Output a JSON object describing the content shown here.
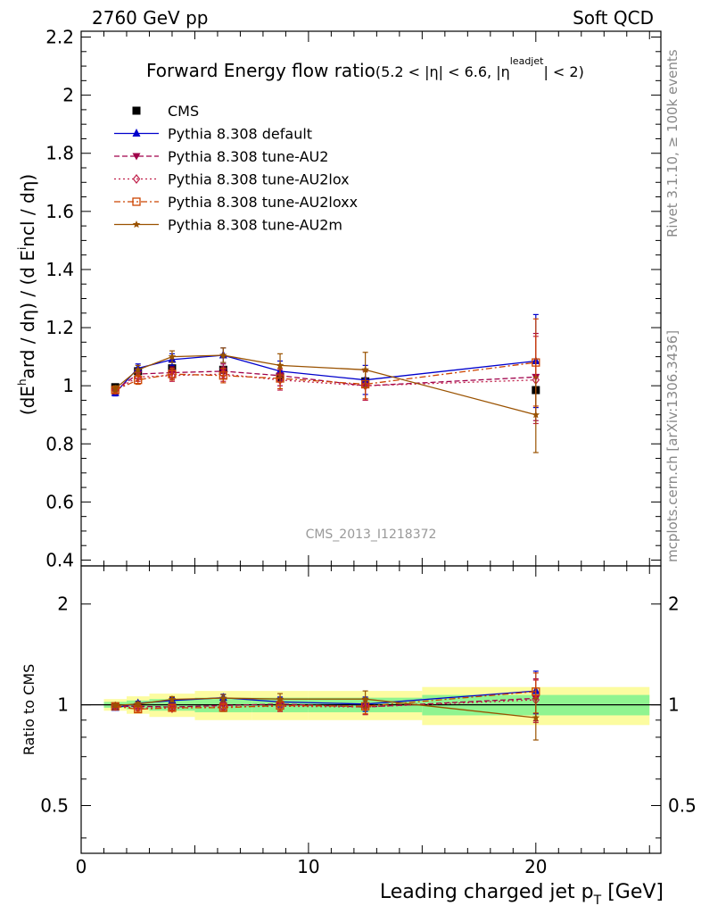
{
  "header": {
    "left": "2760 GeV pp",
    "right": "Soft QCD"
  },
  "side_labels": {
    "rivet": "Rivet 3.1.10, ≥ 100k events",
    "mcplots": "mcplots.cern.ch [arXiv:1306.3436]"
  },
  "chart_data": [
    {
      "type": "scatter",
      "panel": "main",
      "title": "Forward Energy flow ratio",
      "title_cut": "(5.2 < |η| < 6.6, |η^leadjet| < 2)",
      "watermark": "CMS_2013_I1218372",
      "ylabel": "(dE^hard / dη) / (d E^incl / dη)",
      "xlim": [
        0,
        25.5
      ],
      "ylim": [
        0.38,
        2.22
      ],
      "yticks": [
        0.4,
        0.6,
        0.8,
        1,
        1.2,
        1.4,
        1.6,
        1.8,
        2,
        2.2
      ],
      "ytick_labels": [
        "0.4",
        "0.6",
        "0.8",
        "1",
        "1.2",
        "1.4",
        "1.6",
        "1.8",
        "2",
        "2.2"
      ],
      "x": [
        1.5,
        2.5,
        4.0,
        6.25,
        8.75,
        12.5,
        20.0
      ],
      "legend_position": "top-left",
      "series": [
        {
          "name": "CMS",
          "color": "#000000",
          "marker": "square",
          "line": "none",
          "values": [
            0.995,
            1.05,
            1.06,
            1.055,
            1.03,
            1.015,
            0.985
          ],
          "errors": [
            0.0,
            0.0,
            0.0,
            0.0,
            0.0,
            0.0,
            0.0
          ]
        },
        {
          "name": "Pythia 8.308 default",
          "color": "#0000cc",
          "marker": "triangle-up",
          "line": "solid",
          "values": [
            0.975,
            1.06,
            1.09,
            1.105,
            1.05,
            1.02,
            1.085
          ],
          "errors": [
            0.01,
            0.015,
            0.02,
            0.025,
            0.035,
            0.05,
            0.16
          ]
        },
        {
          "name": "Pythia 8.308 tune-AU2",
          "color": "#a0004a",
          "marker": "triangle-down",
          "line": "dashed",
          "values": [
            0.985,
            1.04,
            1.045,
            1.05,
            1.035,
            1.0,
            1.03
          ],
          "errors": [
            0.01,
            0.015,
            0.02,
            0.025,
            0.035,
            0.05,
            0.15
          ]
        },
        {
          "name": "Pythia 8.308 tune-AU2lox",
          "color": "#c0204a",
          "marker": "diamond-open",
          "line": "dotted",
          "values": [
            0.985,
            1.03,
            1.035,
            1.04,
            1.02,
            1.0,
            1.02
          ],
          "errors": [
            0.01,
            0.015,
            0.02,
            0.025,
            0.035,
            0.05,
            0.15
          ]
        },
        {
          "name": "Pythia 8.308 tune-AU2loxx",
          "color": "#cc4400",
          "marker": "square-open",
          "line": "dashdot",
          "values": [
            0.985,
            1.02,
            1.04,
            1.035,
            1.025,
            1.005,
            1.08
          ],
          "errors": [
            0.01,
            0.015,
            0.02,
            0.025,
            0.035,
            0.05,
            0.15
          ]
        },
        {
          "name": "Pythia 8.308 tune-AU2m",
          "color": "#9a5200",
          "marker": "star",
          "line": "solid",
          "values": [
            0.99,
            1.055,
            1.1,
            1.105,
            1.07,
            1.055,
            0.9
          ],
          "errors": [
            0.01,
            0.015,
            0.02,
            0.025,
            0.04,
            0.06,
            0.13
          ]
        }
      ]
    },
    {
      "type": "scatter",
      "panel": "ratio",
      "ylabel": "Ratio to CMS",
      "xlabel": "Leading charged jet p_T [GeV]",
      "xlim": [
        0,
        25.5
      ],
      "xticks": [
        0,
        10,
        20
      ],
      "xtick_labels": [
        "0",
        "10",
        "20"
      ],
      "ylim": [
        0.36,
        2.6
      ],
      "log_y": true,
      "yticks": [
        0.5,
        1,
        2
      ],
      "ytick_labels": [
        "0.5",
        "1",
        "2"
      ],
      "x": [
        1.5,
        2.5,
        4.0,
        6.25,
        8.75,
        12.5,
        20.0
      ],
      "band_bins": [
        [
          1.0,
          2.0
        ],
        [
          2.0,
          3.0
        ],
        [
          3.0,
          5.0
        ],
        [
          5.0,
          7.5
        ],
        [
          7.5,
          10.0
        ],
        [
          10.0,
          15.0
        ],
        [
          15.0,
          25.0
        ]
      ],
      "band_inner": [
        0.02,
        0.03,
        0.04,
        0.05,
        0.05,
        0.05,
        0.07
      ],
      "band_outer": [
        0.04,
        0.06,
        0.08,
        0.1,
        0.1,
        0.1,
        0.13
      ],
      "band_colors": {
        "inner": "#90f490",
        "outer": "#fcfca0"
      },
      "series": [
        {
          "name": "Pythia 8.308 default",
          "values": [
            0.98,
            1.01,
            1.03,
            1.05,
            1.02,
            1.005,
            1.1
          ],
          "errors": [
            0.01,
            0.015,
            0.02,
            0.025,
            0.035,
            0.05,
            0.16
          ]
        },
        {
          "name": "Pythia 8.308 tune-AU2",
          "values": [
            0.99,
            0.99,
            0.985,
            0.995,
            1.005,
            0.985,
            1.045
          ],
          "errors": [
            0.01,
            0.015,
            0.02,
            0.025,
            0.035,
            0.05,
            0.15
          ]
        },
        {
          "name": "Pythia 8.308 tune-AU2lox",
          "values": [
            0.99,
            0.98,
            0.976,
            0.986,
            0.99,
            0.985,
            1.035
          ],
          "errors": [
            0.01,
            0.015,
            0.02,
            0.025,
            0.035,
            0.05,
            0.15
          ]
        },
        {
          "name": "Pythia 8.308 tune-AU2loxx",
          "values": [
            0.99,
            0.97,
            0.98,
            0.98,
            0.995,
            0.99,
            1.095
          ],
          "errors": [
            0.01,
            0.015,
            0.02,
            0.025,
            0.035,
            0.05,
            0.15
          ]
        },
        {
          "name": "Pythia 8.308 tune-AU2m",
          "values": [
            0.995,
            1.005,
            1.038,
            1.047,
            1.04,
            1.04,
            0.915
          ],
          "errors": [
            0.01,
            0.015,
            0.02,
            0.025,
            0.04,
            0.06,
            0.13
          ]
        }
      ]
    }
  ]
}
